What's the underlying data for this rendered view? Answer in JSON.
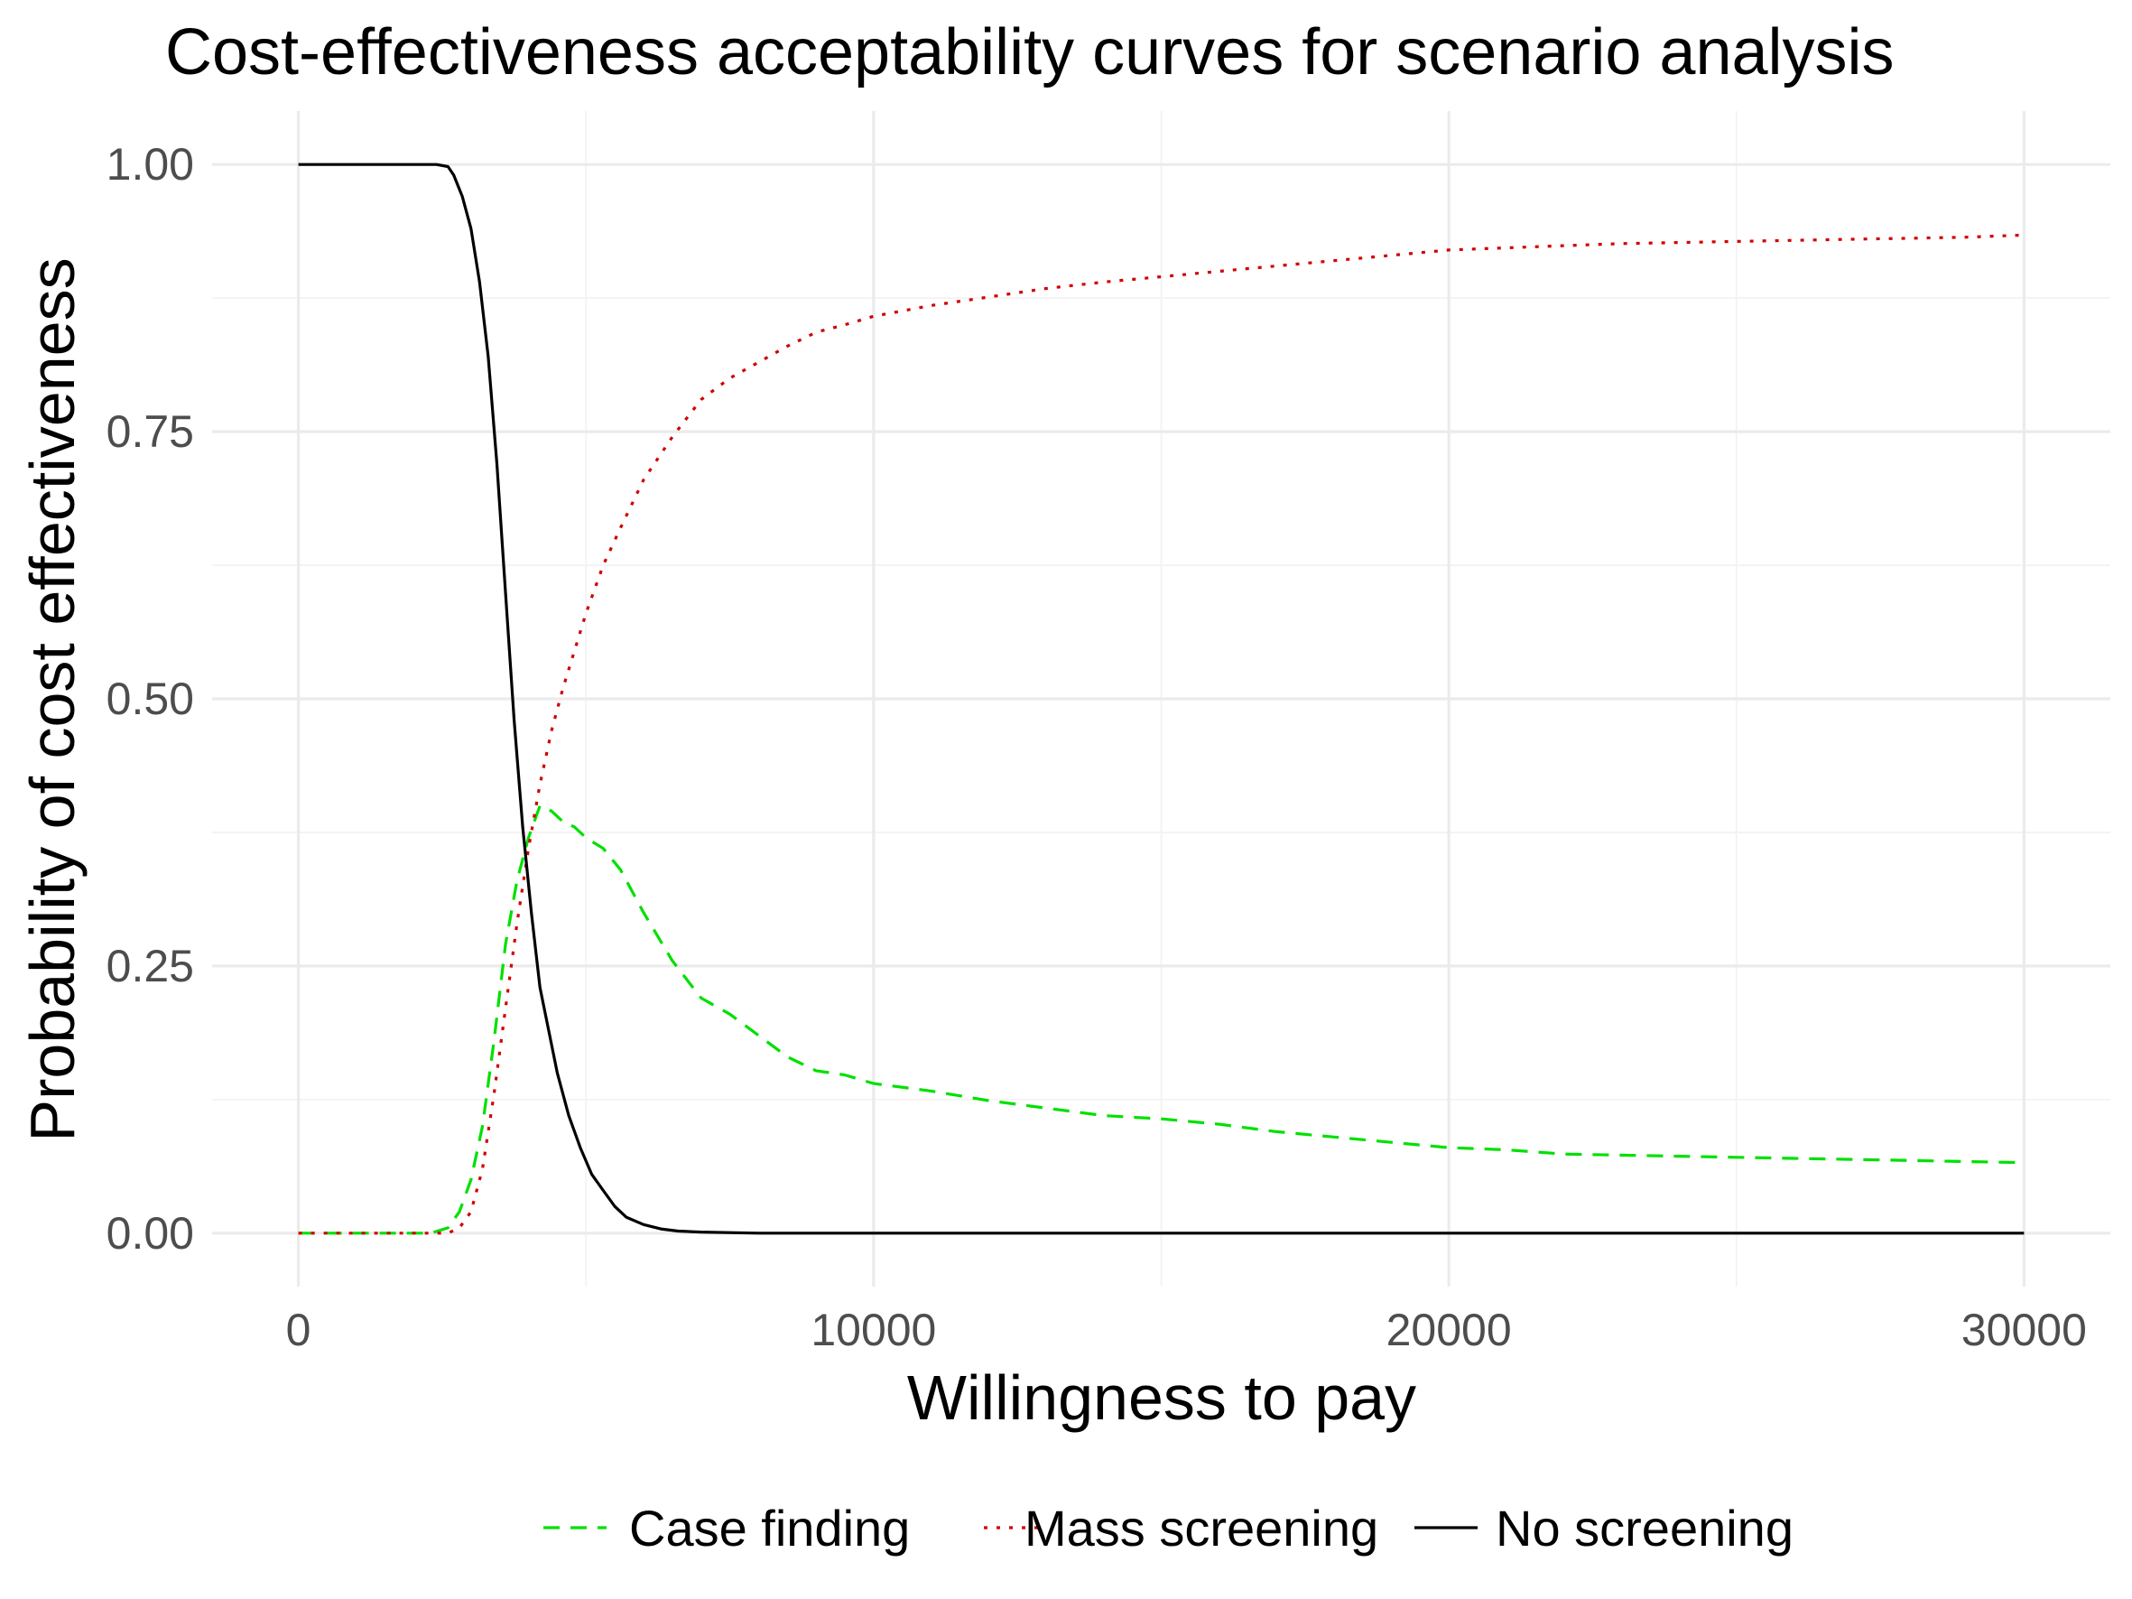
{
  "chart_data": {
    "type": "line",
    "title": "Cost-effectiveness acceptability curves for scenario analysis",
    "xlabel": "Willingness to pay",
    "ylabel": "Probability of cost effectiveness",
    "xlim": [
      -1500,
      31500
    ],
    "ylim": [
      -0.05,
      1.05
    ],
    "x_ticks": [
      0,
      10000,
      20000,
      30000
    ],
    "x_tick_labels": [
      "0",
      "10000",
      "20000",
      "30000"
    ],
    "y_ticks": [
      0,
      0.25,
      0.5,
      0.75,
      1.0
    ],
    "y_tick_labels": [
      "0.00",
      "0.25",
      "0.50",
      "0.75",
      "1.00"
    ],
    "grid": true,
    "legend_position": "bottom",
    "series": [
      {
        "name": "Case finding",
        "color": "#00e000",
        "dash": "dashed",
        "x": [
          0,
          2300,
          2600,
          2800,
          3000,
          3200,
          3400,
          3600,
          3800,
          4000,
          4200,
          4400,
          4600,
          4800,
          5000,
          5300,
          5600,
          6000,
          6500,
          7000,
          7500,
          8000,
          8500,
          9000,
          9500,
          10000,
          11000,
          12000,
          13000,
          14000,
          15000,
          16000,
          17000,
          18000,
          19000,
          20000,
          21000,
          22000,
          23000,
          24000,
          25000,
          26000,
          27000,
          28000,
          29000,
          30000
        ],
        "y": [
          0,
          0,
          0.005,
          0.02,
          0.05,
          0.1,
          0.18,
          0.27,
          0.33,
          0.37,
          0.4,
          0.395,
          0.385,
          0.38,
          0.37,
          0.36,
          0.34,
          0.3,
          0.255,
          0.22,
          0.205,
          0.185,
          0.165,
          0.152,
          0.148,
          0.14,
          0.133,
          0.124,
          0.117,
          0.11,
          0.107,
          0.102,
          0.095,
          0.09,
          0.085,
          0.08,
          0.078,
          0.074,
          0.073,
          0.072,
          0.071,
          0.07,
          0.069,
          0.068,
          0.067,
          0.066
        ]
      },
      {
        "name": "Mass screening",
        "color": "#d00000",
        "dash": "dotted",
        "x": [
          0,
          2600,
          2800,
          3000,
          3200,
          3400,
          3600,
          3800,
          4000,
          4200,
          4400,
          4600,
          4800,
          5000,
          5300,
          5600,
          6000,
          6500,
          7000,
          7500,
          8000,
          8500,
          9000,
          9500,
          10000,
          11000,
          12000,
          13000,
          14000,
          15000,
          16000,
          17000,
          18000,
          19000,
          20000,
          21000,
          22000,
          23000,
          24000,
          25000,
          26000,
          27000,
          28000,
          29000,
          30000
        ],
        "y": [
          0,
          0,
          0.005,
          0.02,
          0.06,
          0.13,
          0.21,
          0.29,
          0.36,
          0.42,
          0.47,
          0.51,
          0.545,
          0.58,
          0.625,
          0.66,
          0.705,
          0.745,
          0.78,
          0.8,
          0.815,
          0.83,
          0.843,
          0.85,
          0.858,
          0.868,
          0.876,
          0.884,
          0.89,
          0.895,
          0.9,
          0.905,
          0.91,
          0.915,
          0.92,
          0.922,
          0.924,
          0.926,
          0.927,
          0.928,
          0.929,
          0.93,
          0.931,
          0.932,
          0.934
        ]
      },
      {
        "name": "No screening",
        "color": "#000000",
        "dash": "solid",
        "x": [
          0,
          2400,
          2600,
          2700,
          2850,
          3000,
          3150,
          3300,
          3450,
          3600,
          3750,
          3900,
          4050,
          4200,
          4350,
          4500,
          4700,
          4900,
          5100,
          5300,
          5500,
          5700,
          6000,
          6300,
          6600,
          7000,
          8000,
          10000,
          15000,
          20000,
          25000,
          30000
        ],
        "y": [
          1,
          1,
          0.998,
          0.99,
          0.97,
          0.94,
          0.89,
          0.82,
          0.72,
          0.6,
          0.48,
          0.38,
          0.3,
          0.23,
          0.19,
          0.15,
          0.11,
          0.08,
          0.055,
          0.04,
          0.025,
          0.015,
          0.008,
          0.004,
          0.002,
          0.001,
          0,
          0,
          0,
          0,
          0,
          0
        ]
      }
    ]
  }
}
